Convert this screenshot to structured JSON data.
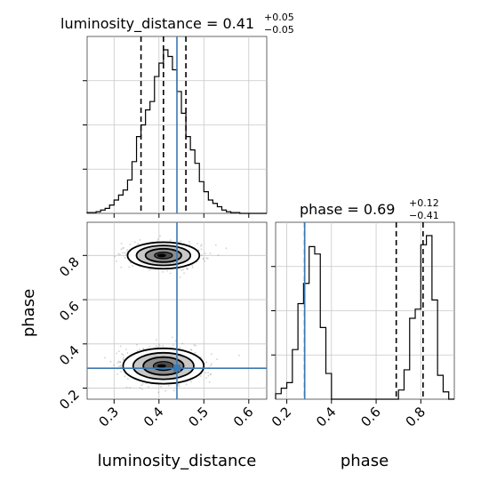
{
  "chart_data": [
    {
      "type": "histogram",
      "panel": "luminosity_distance-1d",
      "title_text": "luminosity_distance = 0.41",
      "title_sup": "+0.05",
      "title_sub": "−0.05",
      "x_range": [
        0.24,
        0.64
      ],
      "bins": {
        "x": [
          0.24,
          0.25,
          0.26,
          0.27,
          0.28,
          0.29,
          0.3,
          0.31,
          0.32,
          0.33,
          0.34,
          0.35,
          0.36,
          0.37,
          0.38,
          0.39,
          0.4,
          0.41,
          0.42,
          0.43,
          0.44,
          0.45,
          0.46,
          0.47,
          0.48,
          0.49,
          0.5,
          0.51,
          0.52,
          0.53,
          0.54,
          0.55,
          0.56,
          0.57,
          0.58,
          0.59,
          0.6,
          0.61,
          0.62,
          0.63,
          0.64
        ],
        "y": [
          0.005,
          0.005,
          0.01,
          0.02,
          0.03,
          0.05,
          0.08,
          0.11,
          0.14,
          0.2,
          0.31,
          0.46,
          0.53,
          0.62,
          0.67,
          0.82,
          0.9,
          0.98,
          0.94,
          0.86,
          0.73,
          0.6,
          0.46,
          0.38,
          0.3,
          0.19,
          0.13,
          0.08,
          0.06,
          0.04,
          0.02,
          0.01,
          0.005,
          0.005,
          0,
          0,
          0,
          0,
          0,
          0
        ]
      },
      "quantile_lines": [
        0.36,
        0.41,
        0.46
      ],
      "truth": 0.44
    },
    {
      "type": "scatter",
      "panel": "luminosity_distance-vs-phase",
      "xlabel": "luminosity_distance",
      "ylabel": "phase",
      "x_range": [
        0.24,
        0.64
      ],
      "y_range": [
        0.15,
        0.95
      ],
      "x_ticks": [
        "0.3",
        "0.4",
        "0.5",
        "0.6"
      ],
      "y_ticks": [
        "0.2",
        "0.4",
        "0.6",
        "0.8"
      ],
      "clusters": [
        {
          "cx": 0.41,
          "cy": 0.8,
          "sx": 0.04,
          "sy": 0.03
        },
        {
          "cx": 0.41,
          "cy": 0.3,
          "sx": 0.045,
          "sy": 0.04
        }
      ],
      "truth": {
        "x": 0.44,
        "y": 0.29
      }
    },
    {
      "type": "histogram",
      "panel": "phase-1d",
      "title_text": "phase = 0.69",
      "title_sup": "+0.12",
      "title_sub": "−0.41",
      "xlabel": "phase",
      "x_range": [
        0.15,
        0.95
      ],
      "x_ticks": [
        "0.2",
        "0.4",
        "0.6",
        "0.8"
      ],
      "bins": {
        "x": [
          0.15,
          0.175,
          0.2,
          0.225,
          0.25,
          0.275,
          0.3,
          0.325,
          0.35,
          0.375,
          0.4,
          0.425,
          0.45,
          0.475,
          0.5,
          0.525,
          0.55,
          0.575,
          0.6,
          0.625,
          0.65,
          0.675,
          0.7,
          0.725,
          0.75,
          0.775,
          0.8,
          0.825,
          0.85,
          0.875,
          0.9,
          0.925,
          0.95
        ],
        "y": [
          0.03,
          0.06,
          0.09,
          0.27,
          0.52,
          0.63,
          0.83,
          0.79,
          0.39,
          0.14,
          0.0,
          0.0,
          0.0,
          0.0,
          0.0,
          0.0,
          0.0,
          0.0,
          0.0,
          0.0,
          0.0,
          0.0,
          0.05,
          0.16,
          0.44,
          0.49,
          0.84,
          0.89,
          0.54,
          0.13,
          0.04,
          0.0
        ]
      },
      "quantile_lines": [
        0.28,
        0.69,
        0.81
      ],
      "truth": 0.28
    }
  ]
}
